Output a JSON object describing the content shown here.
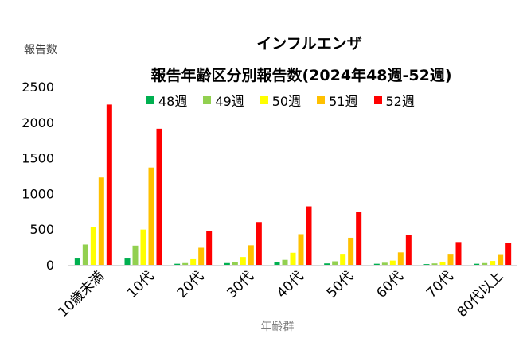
{
  "chart_data": {
    "type": "bar",
    "title": "インフルエンザ",
    "subtitle": "報告年齢区分別報告数(2024年48週-52週)",
    "ylabel": "報告数",
    "xlabel": "年齢群",
    "ylim": [
      0,
      2500
    ],
    "yticks": [
      "0",
      "500",
      "1000",
      "1500",
      "2000",
      "2500"
    ],
    "grid": false,
    "legend_position": "top",
    "categories": [
      "10歳未満",
      "10代",
      "20代",
      "30代",
      "40代",
      "50代",
      "60代",
      "70代",
      "80代以上"
    ],
    "series": [
      {
        "name": "48週",
        "color": "#00b050",
        "values": [
          100,
          100,
          15,
          25,
          40,
          20,
          15,
          10,
          15
        ]
      },
      {
        "name": "49週",
        "color": "#92d050",
        "values": [
          285,
          270,
          25,
          40,
          70,
          50,
          30,
          20,
          25
        ]
      },
      {
        "name": "50週",
        "color": "#ffff00",
        "values": [
          535,
          495,
          90,
          110,
          170,
          155,
          60,
          45,
          55
        ]
      },
      {
        "name": "51週",
        "color": "#ffc000",
        "values": [
          1225,
          1365,
          240,
          275,
          430,
          380,
          175,
          155,
          150
        ]
      },
      {
        "name": "52週",
        "color": "#ff0000",
        "values": [
          2250,
          1910,
          475,
          600,
          820,
          740,
          415,
          320,
          305
        ]
      }
    ]
  }
}
